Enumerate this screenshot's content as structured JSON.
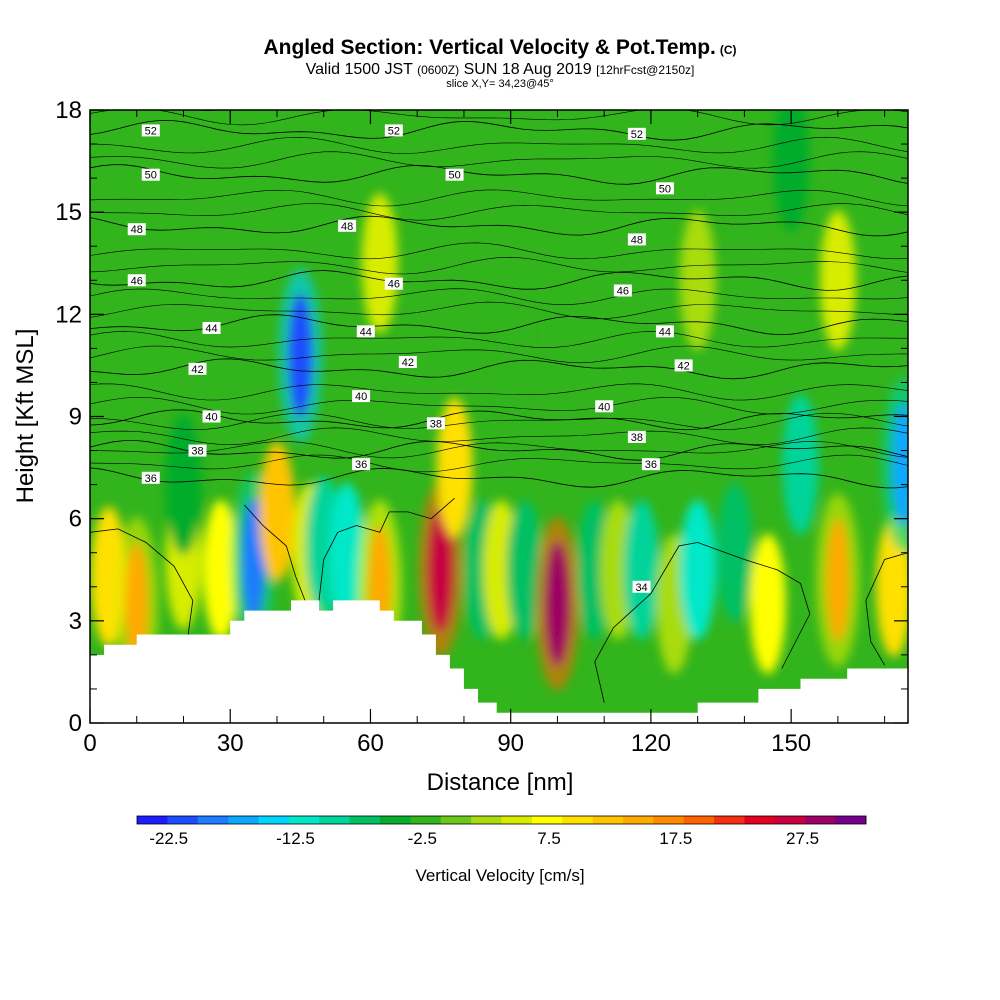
{
  "header": {
    "title": "Angled Section: Vertical Velocity & Pot.Temp.",
    "title_units": "(C)",
    "valid_prefix": "Valid 1500 JST",
    "valid_utc": "(0600Z)",
    "valid_date": "SUN 18 Aug 2019",
    "forecast": "[12hrFcst@2150z]",
    "slice": "slice X,Y= 34,23@45°"
  },
  "chart_data": {
    "type": "heatmap",
    "xlabel": "Distance [nm]",
    "ylabel": "Height [Kft MSL]",
    "xlim": [
      0,
      175
    ],
    "ylim": [
      0,
      18
    ],
    "xticks": [
      0,
      30,
      60,
      90,
      120,
      150
    ],
    "yticks": [
      0,
      3,
      6,
      9,
      12,
      15,
      18
    ],
    "colorbar": {
      "label": "Vertical Velocity [cm/s]",
      "min": -25,
      "max": 32.5,
      "step": 2.5,
      "tick_values": [
        -22.5,
        -12.5,
        -2.5,
        7.5,
        17.5,
        27.5
      ],
      "tick_labels": [
        "-22.5",
        "-12.5",
        "-2.5",
        "7.5",
        "17.5",
        "27.5"
      ],
      "colors": [
        "#1c1cff",
        "#1c4cff",
        "#1c7cff",
        "#08a8ff",
        "#00d4ff",
        "#00e8c8",
        "#00d49a",
        "#00c064",
        "#06ac2c",
        "#32b41c",
        "#6cc818",
        "#a8dc0e",
        "#d8ec00",
        "#ffff00",
        "#ffe000",
        "#ffc400",
        "#ffaa00",
        "#ff8a00",
        "#ff6200",
        "#f43010",
        "#e40020",
        "#c80040",
        "#9c0064",
        "#74008c"
      ]
    },
    "vertical_velocity_cells": [
      {
        "x": 4,
        "z": 4.3,
        "value": 12
      },
      {
        "x": 10,
        "z": 3.5,
        "value": 15
      },
      {
        "x": 20,
        "z": 4.8,
        "value": 7
      },
      {
        "x": 28,
        "z": 4.5,
        "value": 9
      },
      {
        "x": 35,
        "z": 4.8,
        "value": -18
      },
      {
        "x": 40,
        "z": 6.2,
        "value": 14
      },
      {
        "x": 45,
        "z": 10.8,
        "value": -22
      },
      {
        "x": 47,
        "z": 5.0,
        "value": 6
      },
      {
        "x": 50,
        "z": 5.2,
        "value": -8
      },
      {
        "x": 55,
        "z": 5.0,
        "value": -12
      },
      {
        "x": 62,
        "z": 4.0,
        "value": 16
      },
      {
        "x": 75,
        "z": 4.5,
        "value": 29
      },
      {
        "x": 78,
        "z": 7.5,
        "value": 10
      },
      {
        "x": 84,
        "z": 4.5,
        "value": -6
      },
      {
        "x": 88,
        "z": 4.5,
        "value": 5
      },
      {
        "x": 93,
        "z": 4.5,
        "value": -7
      },
      {
        "x": 100,
        "z": 3.5,
        "value": 30
      },
      {
        "x": 108,
        "z": 4.5,
        "value": -6
      },
      {
        "x": 113,
        "z": 4.5,
        "value": 4
      },
      {
        "x": 118,
        "z": 4.5,
        "value": -10
      },
      {
        "x": 125,
        "z": 3.5,
        "value": 3
      },
      {
        "x": 130,
        "z": 4.5,
        "value": -12
      },
      {
        "x": 138,
        "z": 5.0,
        "value": -6
      },
      {
        "x": 145,
        "z": 3.5,
        "value": 8
      },
      {
        "x": 160,
        "z": 4.2,
        "value": 15
      },
      {
        "x": 172,
        "z": 4.0,
        "value": 12
      },
      {
        "x": 174,
        "z": 7.6,
        "value": -16
      },
      {
        "x": 152,
        "z": 7.6,
        "value": -8
      },
      {
        "x": 20,
        "z": 7.0,
        "value": -5
      },
      {
        "x": 62,
        "z": 13.5,
        "value": 6
      },
      {
        "x": 130,
        "z": 13.0,
        "value": 4
      },
      {
        "x": 160,
        "z": 13.0,
        "value": 5
      },
      {
        "x": 90,
        "z": 11.0,
        "value": -1
      },
      {
        "x": 150,
        "z": 16.5,
        "value": -4
      }
    ],
    "terrain": [
      [
        0,
        2
      ],
      [
        3,
        2
      ],
      [
        3,
        2.3
      ],
      [
        10,
        2.3
      ],
      [
        10,
        2.6
      ],
      [
        30,
        2.6
      ],
      [
        30,
        3
      ],
      [
        33,
        3
      ],
      [
        33,
        3.3
      ],
      [
        43,
        3.3
      ],
      [
        43,
        3.6
      ],
      [
        49,
        3.6
      ],
      [
        49,
        3.3
      ],
      [
        52,
        3.3
      ],
      [
        52,
        3.6
      ],
      [
        62,
        3.6
      ],
      [
        62,
        3.3
      ],
      [
        65,
        3.3
      ],
      [
        65,
        3
      ],
      [
        71,
        3
      ],
      [
        71,
        2.6
      ],
      [
        74,
        2.6
      ],
      [
        74,
        2
      ],
      [
        77,
        2
      ],
      [
        77,
        1.6
      ],
      [
        80,
        1.6
      ],
      [
        80,
        1
      ],
      [
        83,
        1
      ],
      [
        83,
        0.6
      ],
      [
        87,
        0.6
      ],
      [
        87,
        0.3
      ],
      [
        130,
        0.3
      ],
      [
        130,
        0.6
      ],
      [
        143,
        0.6
      ],
      [
        143,
        1
      ],
      [
        152,
        1
      ],
      [
        152,
        1.3
      ],
      [
        162,
        1.3
      ],
      [
        162,
        1.6
      ],
      [
        175,
        1.6
      ]
    ],
    "theta_contours": [
      {
        "label": "52",
        "base": 17.4,
        "count": 1
      },
      {
        "label": "50",
        "base": 16.1,
        "count": 1
      },
      {
        "label": "48",
        "base": 14.6,
        "count": 1
      },
      {
        "label": "46",
        "base": 13.0,
        "count": 1
      },
      {
        "label": "44",
        "base": 11.7,
        "count": 1
      },
      {
        "label": "42",
        "base": 10.4,
        "count": 1
      },
      {
        "label": "40",
        "base": 8.9,
        "count": 1
      },
      {
        "label": "38",
        "base": 8.0,
        "count": 1
      },
      {
        "label": "36",
        "base": 7.2,
        "count": 1
      }
    ],
    "contour_labels": [
      {
        "text": "52",
        "x": 13,
        "z": 17.4
      },
      {
        "text": "52",
        "x": 65,
        "z": 17.4
      },
      {
        "text": "52",
        "x": 117,
        "z": 17.3
      },
      {
        "text": "50",
        "x": 13,
        "z": 16.1
      },
      {
        "text": "50",
        "x": 78,
        "z": 16.1
      },
      {
        "text": "50",
        "x": 123,
        "z": 15.7
      },
      {
        "text": "48",
        "x": 10,
        "z": 14.5
      },
      {
        "text": "48",
        "x": 55,
        "z": 14.6
      },
      {
        "text": "48",
        "x": 117,
        "z": 14.2
      },
      {
        "text": "46",
        "x": 10,
        "z": 13.0
      },
      {
        "text": "46",
        "x": 65,
        "z": 12.9
      },
      {
        "text": "46",
        "x": 114,
        "z": 12.7
      },
      {
        "text": "44",
        "x": 26,
        "z": 11.6
      },
      {
        "text": "44",
        "x": 59,
        "z": 11.5
      },
      {
        "text": "44",
        "x": 123,
        "z": 11.5
      },
      {
        "text": "42",
        "x": 23,
        "z": 10.4
      },
      {
        "text": "42",
        "x": 68,
        "z": 10.6
      },
      {
        "text": "42",
        "x": 127,
        "z": 10.5
      },
      {
        "text": "40",
        "x": 26,
        "z": 9.0
      },
      {
        "text": "40",
        "x": 58,
        "z": 9.6
      },
      {
        "text": "40",
        "x": 110,
        "z": 9.3
      },
      {
        "text": "38",
        "x": 23,
        "z": 8.0
      },
      {
        "text": "38",
        "x": 74,
        "z": 8.8
      },
      {
        "text": "38",
        "x": 117,
        "z": 8.4
      },
      {
        "text": "36",
        "x": 13,
        "z": 7.2
      },
      {
        "text": "36",
        "x": 58,
        "z": 7.6
      },
      {
        "text": "36",
        "x": 120,
        "z": 7.6
      },
      {
        "text": "34",
        "x": 118,
        "z": 4.0
      }
    ]
  }
}
